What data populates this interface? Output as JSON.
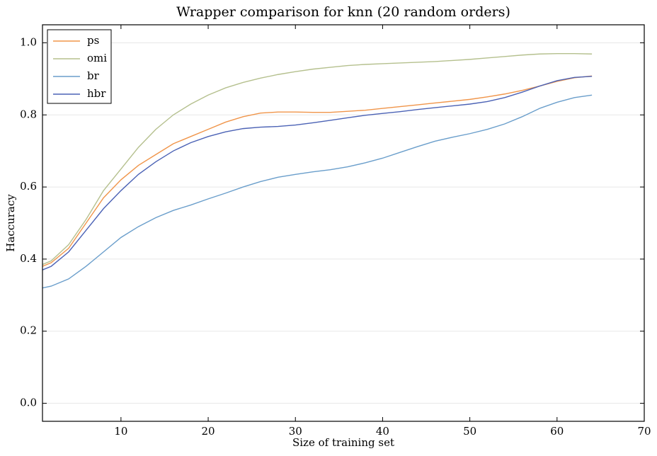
{
  "chart_data": {
    "type": "line",
    "title": "Wrapper comparison for knn (20 random orders)",
    "x_label": "Size of training set",
    "y_label": "Haccuracy",
    "x": [
      1,
      2,
      4,
      6,
      8,
      10,
      12,
      14,
      16,
      18,
      20,
      22,
      24,
      26,
      28,
      30,
      32,
      34,
      36,
      38,
      40,
      42,
      44,
      46,
      48,
      50,
      52,
      54,
      56,
      58,
      60,
      62,
      64
    ],
    "series": [
      {
        "name": "ps",
        "color": "#f0954a",
        "values": [
          0.38,
          0.39,
          0.43,
          0.5,
          0.57,
          0.62,
          0.66,
          0.69,
          0.72,
          0.74,
          0.76,
          0.78,
          0.795,
          0.805,
          0.808,
          0.808,
          0.807,
          0.807,
          0.81,
          0.813,
          0.818,
          0.823,
          0.828,
          0.833,
          0.838,
          0.843,
          0.85,
          0.858,
          0.868,
          0.88,
          0.893,
          0.903,
          0.908
        ]
      },
      {
        "name": "omi",
        "color": "#b5c08e",
        "values": [
          0.385,
          0.395,
          0.44,
          0.51,
          0.59,
          0.65,
          0.71,
          0.76,
          0.8,
          0.83,
          0.855,
          0.875,
          0.89,
          0.902,
          0.912,
          0.92,
          0.927,
          0.932,
          0.937,
          0.94,
          0.942,
          0.944,
          0.946,
          0.948,
          0.951,
          0.954,
          0.958,
          0.962,
          0.966,
          0.969,
          0.97,
          0.97,
          0.969
        ]
      },
      {
        "name": "br",
        "color": "#6a9ecb",
        "values": [
          0.32,
          0.325,
          0.345,
          0.38,
          0.42,
          0.46,
          0.49,
          0.515,
          0.535,
          0.55,
          0.567,
          0.583,
          0.6,
          0.615,
          0.627,
          0.635,
          0.642,
          0.648,
          0.656,
          0.667,
          0.68,
          0.696,
          0.712,
          0.727,
          0.738,
          0.748,
          0.76,
          0.775,
          0.795,
          0.818,
          0.835,
          0.848,
          0.855
        ]
      },
      {
        "name": "hbr",
        "color": "#4b62b5",
        "values": [
          0.37,
          0.38,
          0.42,
          0.48,
          0.54,
          0.59,
          0.635,
          0.67,
          0.7,
          0.723,
          0.74,
          0.753,
          0.762,
          0.766,
          0.768,
          0.772,
          0.778,
          0.785,
          0.792,
          0.799,
          0.804,
          0.809,
          0.815,
          0.82,
          0.825,
          0.83,
          0.837,
          0.848,
          0.863,
          0.88,
          0.895,
          0.904,
          0.907
        ]
      }
    ],
    "xlim": [
      1,
      70
    ],
    "xticks": [
      10,
      20,
      30,
      40,
      50,
      60,
      70
    ],
    "ylim": [
      -0.05,
      1.05
    ],
    "yticks": [
      {
        "value": 0,
        "label": "0.0"
      },
      0.2,
      0.4,
      0.6,
      0.8,
      {
        "value": 1,
        "label": "1.0"
      }
    ],
    "grid": true,
    "legend": "upper-left"
  }
}
